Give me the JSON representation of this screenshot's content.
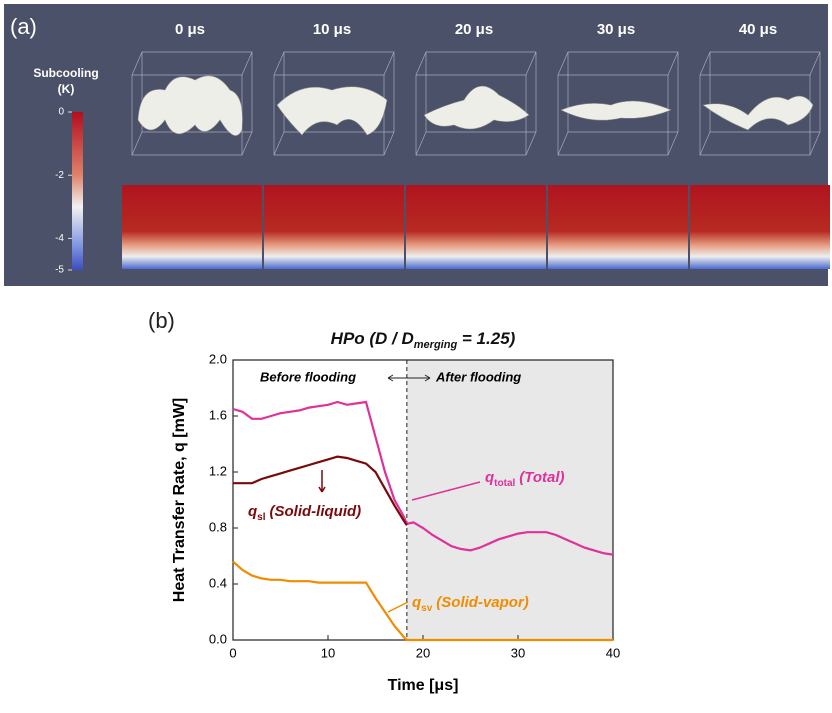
{
  "panel_a": {
    "label": "(a)",
    "times": [
      "0 μs",
      "10 μs",
      "20 μs",
      "30 μs",
      "40 μs"
    ],
    "colorbar_title": "Subcooling",
    "colorbar_unit": "(K)",
    "clim": [
      -5,
      0
    ],
    "colorbar_ticks": [
      0,
      -2,
      -4,
      -5
    ]
  },
  "chart_data": {
    "type": "line",
    "panel_label": "(b)",
    "title": "HPo (D / D",
    "title_subscript": "merging",
    "title_suffix": " = 1.25)",
    "xlabel": "Time [μs]",
    "ylabel": "Heat Transfer Rate, q [mW]",
    "xlim": [
      0,
      40
    ],
    "xticks": [
      0,
      10,
      20,
      30,
      40
    ],
    "ylim": [
      0,
      2
    ],
    "yticks": [
      {
        "value": 0,
        "label": "0.0"
      },
      0.4,
      0.8,
      1.2,
      1.6,
      {
        "value": 2,
        "label": "2.0"
      }
    ],
    "flooding_time": 18.3,
    "before_label": "Before flooding",
    "after_label": "After flooding",
    "series": [
      {
        "name": "(Total)",
        "symbol": "q",
        "subscript": "total",
        "color": "#e0309a",
        "x": [
          0,
          1,
          2,
          3,
          4,
          5,
          6,
          7,
          8,
          9,
          10,
          11,
          12,
          13,
          14,
          15,
          16,
          17,
          18,
          18.3,
          19,
          20,
          21,
          22,
          23,
          24,
          25,
          26,
          27,
          28,
          29,
          30,
          31,
          32,
          33,
          34,
          35,
          36,
          37,
          38,
          39,
          40
        ],
        "values": [
          1.65,
          1.63,
          1.58,
          1.58,
          1.6,
          1.62,
          1.63,
          1.64,
          1.66,
          1.67,
          1.68,
          1.7,
          1.68,
          1.69,
          1.7,
          1.45,
          1.2,
          1.0,
          0.88,
          0.83,
          0.84,
          0.8,
          0.75,
          0.71,
          0.67,
          0.65,
          0.64,
          0.66,
          0.69,
          0.72,
          0.74,
          0.76,
          0.77,
          0.77,
          0.77,
          0.75,
          0.72,
          0.69,
          0.66,
          0.64,
          0.62,
          0.61
        ]
      },
      {
        "name": "(Solid-liquid)",
        "symbol": "q",
        "subscript": "sl",
        "color": "#7a0a0a",
        "x": [
          0,
          1,
          2,
          3,
          4,
          5,
          6,
          7,
          8,
          9,
          10,
          11,
          12,
          13,
          14,
          15,
          16,
          17,
          18,
          18.3
        ],
        "values": [
          1.12,
          1.12,
          1.12,
          1.15,
          1.17,
          1.19,
          1.21,
          1.23,
          1.25,
          1.27,
          1.29,
          1.31,
          1.3,
          1.28,
          1.26,
          1.2,
          1.08,
          0.96,
          0.85,
          0.82
        ]
      },
      {
        "name": "(Solid-vapor)",
        "symbol": "q",
        "subscript": "sv",
        "color": "#f08c00",
        "x": [
          0,
          1,
          2,
          3,
          4,
          5,
          6,
          7,
          8,
          9,
          10,
          11,
          12,
          13,
          14,
          15,
          16,
          17,
          18,
          18.3,
          40
        ],
        "values": [
          0.56,
          0.5,
          0.46,
          0.44,
          0.43,
          0.43,
          0.42,
          0.42,
          0.42,
          0.41,
          0.41,
          0.41,
          0.41,
          0.41,
          0.41,
          0.3,
          0.2,
          0.1,
          0.02,
          0,
          0
        ]
      }
    ]
  }
}
